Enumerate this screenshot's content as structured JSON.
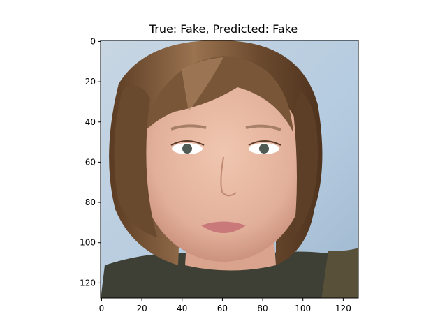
{
  "figure": {
    "title": "True: Fake, Predicted: Fake"
  },
  "axes": {
    "x_ticks": [
      "0",
      "20",
      "40",
      "60",
      "80",
      "100",
      "120"
    ],
    "y_ticks": [
      "0",
      "20",
      "40",
      "60",
      "80",
      "100",
      "120"
    ]
  },
  "image": {
    "description_icon": "portrait-photo",
    "colors": {
      "background": "#b9cfe0",
      "hair": "#6b4a2e",
      "skin": "#e7b9a3",
      "clothing": "#3e4035"
    }
  }
}
